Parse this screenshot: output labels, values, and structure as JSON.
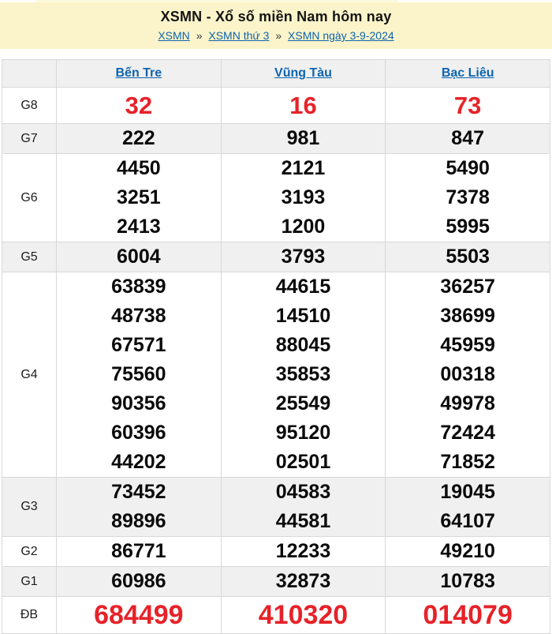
{
  "page": {
    "title": "XSMN - Xổ số miền Nam hôm nay",
    "breadcrumb": {
      "separator": "»",
      "items": [
        "XSMN",
        "XSMN thứ 3",
        "XSMN ngày 3-9-2024"
      ]
    }
  },
  "colors": {
    "header_bg": "#fbf4ca",
    "link_blue": "#0d64af",
    "result_red": "#e62229",
    "stripe_gray": "#f0f0f0",
    "border_gray": "#d8d8d8"
  },
  "table": {
    "columns": [
      "Bến Tre",
      "Vũng Tàu",
      "Bạc Liêu"
    ],
    "rows": [
      {
        "label": "G8",
        "style": "red-large",
        "shade": "white",
        "values": [
          [
            "32"
          ],
          [
            "16"
          ],
          [
            "73"
          ]
        ]
      },
      {
        "label": "G7",
        "style": "black",
        "shade": "gray",
        "values": [
          [
            "222"
          ],
          [
            "981"
          ],
          [
            "847"
          ]
        ]
      },
      {
        "label": "G6",
        "style": "black",
        "shade": "white",
        "values": [
          [
            "4450",
            "3251",
            "2413"
          ],
          [
            "2121",
            "3193",
            "1200"
          ],
          [
            "5490",
            "7378",
            "5995"
          ]
        ]
      },
      {
        "label": "G5",
        "style": "black",
        "shade": "gray",
        "values": [
          [
            "6004"
          ],
          [
            "3793"
          ],
          [
            "5503"
          ]
        ]
      },
      {
        "label": "G4",
        "style": "black",
        "shade": "white",
        "values": [
          [
            "63839",
            "48738",
            "67571",
            "75560",
            "90356",
            "60396",
            "44202"
          ],
          [
            "44615",
            "14510",
            "88045",
            "35853",
            "25549",
            "95120",
            "02501"
          ],
          [
            "36257",
            "38699",
            "45959",
            "00318",
            "49978",
            "72424",
            "71852"
          ]
        ]
      },
      {
        "label": "G3",
        "style": "black",
        "shade": "gray",
        "values": [
          [
            "73452",
            "89896"
          ],
          [
            "04583",
            "44581"
          ],
          [
            "19045",
            "64107"
          ]
        ]
      },
      {
        "label": "G2",
        "style": "black",
        "shade": "white",
        "values": [
          [
            "86771"
          ],
          [
            "12233"
          ],
          [
            "49210"
          ]
        ]
      },
      {
        "label": "G1",
        "style": "black",
        "shade": "gray",
        "values": [
          [
            "60986"
          ],
          [
            "32873"
          ],
          [
            "10783"
          ]
        ]
      },
      {
        "label": "ĐB",
        "style": "red-xlarge",
        "shade": "white",
        "values": [
          [
            "684499"
          ],
          [
            "410320"
          ],
          [
            "014079"
          ]
        ]
      }
    ]
  }
}
